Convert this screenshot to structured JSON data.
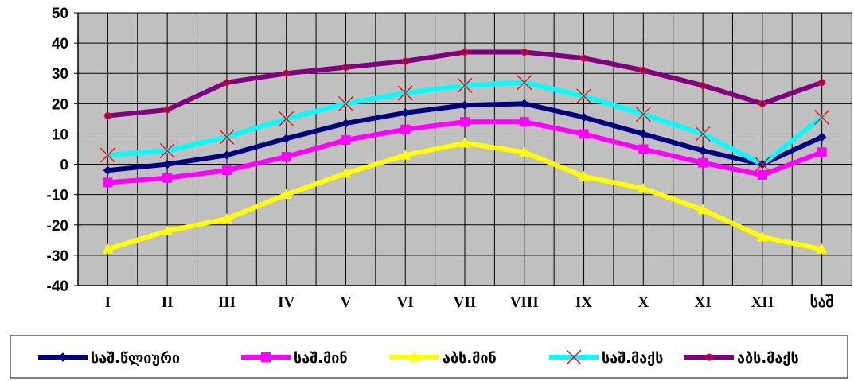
{
  "chart_data": {
    "type": "line",
    "title": "",
    "xlabel": "",
    "ylabel": "",
    "ylim": [
      -40,
      50
    ],
    "yticks": [
      -40,
      -30,
      -20,
      -10,
      0,
      10,
      20,
      30,
      40,
      50
    ],
    "grid": true,
    "legend_position": "bottom",
    "categories": [
      "I",
      "II",
      "III",
      "IV",
      "V",
      "VI",
      "VII",
      "VIII",
      "IX",
      "X",
      "XI",
      "XII",
      "საშ"
    ],
    "series": [
      {
        "name": "საშ.წლიური",
        "color": "#000080",
        "marker": "diamond",
        "values": [
          -2,
          0,
          3,
          8.5,
          13.5,
          17,
          19.5,
          20,
          15.5,
          10,
          4.5,
          0,
          9
        ]
      },
      {
        "name": "საშ.მინ",
        "color": "#FF00FF",
        "marker": "square",
        "values": [
          -6,
          -4.5,
          -2,
          2.5,
          8,
          11.5,
          14,
          14,
          10,
          5,
          0.5,
          -3.5,
          4
        ]
      },
      {
        "name": "აბს.მინ",
        "color": "#FFFF00",
        "marker": "triangle",
        "values": [
          -28,
          -22,
          -18,
          -10,
          -3,
          3,
          7,
          4,
          -4,
          -8,
          -15,
          -24,
          -28
        ]
      },
      {
        "name": "საშ.მაქს",
        "color": "#00FFFF",
        "marker": "x",
        "values": [
          3,
          4.5,
          9,
          15,
          20,
          23.5,
          26,
          27,
          22.5,
          16.5,
          10,
          0,
          15.5
        ]
      },
      {
        "name": "აბს.მაქს",
        "color": "#800080",
        "marker": "circle",
        "values": [
          16,
          18,
          27,
          30,
          32,
          34,
          37,
          37,
          35,
          31,
          26,
          20,
          27
        ]
      }
    ]
  }
}
